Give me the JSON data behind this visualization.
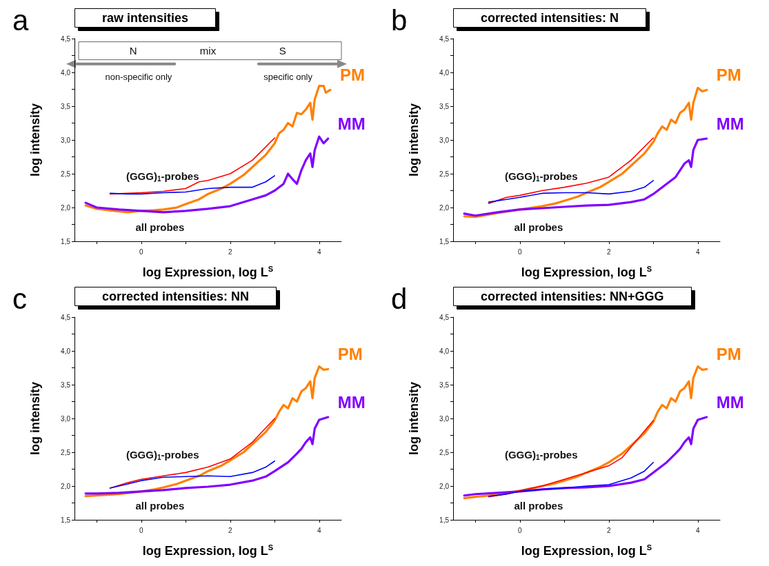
{
  "chart_data": [
    {
      "type": "line",
      "title": "raw intensities",
      "xlabel": "log Expression, log L$^{S}$",
      "ylabel": "log intensity",
      "xlim": [
        -1.5,
        4.5
      ],
      "ylim": [
        1.5,
        4.5
      ],
      "xticks": [
        {
          "value": -1,
          "label": null
        },
        0,
        {
          "value": 1,
          "label": null
        },
        2,
        {
          "value": 3,
          "label": null
        },
        4
      ],
      "yticks": [
        {
          "value": 1.5,
          "label": "1,5"
        },
        {
          "value": 1.75,
          "label": null
        },
        {
          "value": 2,
          "label": "2,0"
        },
        {
          "value": 2.25,
          "label": null
        },
        {
          "value": 2.5,
          "label": "2,5"
        },
        {
          "value": 2.75,
          "label": null
        },
        {
          "value": 3,
          "label": "3,0"
        },
        {
          "value": 3.25,
          "label": null
        },
        {
          "value": 3.5,
          "label": "3,5"
        },
        {
          "value": 3.75,
          "label": null
        },
        {
          "value": 4,
          "label": "4,0"
        },
        {
          "value": 4.25,
          "label": null
        },
        {
          "value": 4.5,
          "label": "4,5"
        }
      ],
      "grid": false,
      "legend": false,
      "annotations": [
        "a",
        "N",
        "mix",
        "S",
        "non-specific only",
        "specific only",
        "(GGG)$_{1}$-probes",
        "all probes"
      ],
      "series": [
        {
          "name": "PM",
          "color": "#ff8000",
          "x": [
            -1.25,
            -1,
            -0.6,
            -0.3,
            0,
            0.3,
            0.5,
            0.8,
            1,
            1.3,
            1.5,
            1.8,
            2,
            2.3,
            2.5,
            2.8,
            3,
            3.1,
            3.2,
            3.3,
            3.4,
            3.5,
            3.6,
            3.7,
            3.8,
            3.85,
            3.9,
            4,
            4.1,
            4.15,
            4.25
          ],
          "values": [
            2.03,
            1.98,
            1.95,
            1.93,
            1.95,
            1.96,
            1.97,
            2.0,
            2.05,
            2.12,
            2.2,
            2.28,
            2.35,
            2.48,
            2.6,
            2.78,
            2.95,
            3.1,
            3.15,
            3.25,
            3.2,
            3.4,
            3.38,
            3.45,
            3.55,
            3.3,
            3.6,
            3.8,
            3.8,
            3.7,
            3.74
          ]
        },
        {
          "name": "MM",
          "color": "#8000ff",
          "x": [
            -1.25,
            -1,
            -0.5,
            0,
            0.5,
            1,
            1.5,
            2,
            2.5,
            2.8,
            3,
            3.2,
            3.3,
            3.4,
            3.5,
            3.6,
            3.7,
            3.8,
            3.85,
            3.9,
            4,
            4.1,
            4.2
          ],
          "values": [
            2.07,
            2.0,
            1.97,
            1.95,
            1.93,
            1.95,
            1.98,
            2.02,
            2.12,
            2.18,
            2.25,
            2.35,
            2.5,
            2.42,
            2.35,
            2.55,
            2.7,
            2.8,
            2.6,
            2.85,
            3.05,
            2.95,
            3.02
          ]
        },
        {
          "color": "#ff0000",
          "x": [
            -0.7,
            -0.3,
            0,
            0.5,
            1,
            1.3,
            1.5,
            2,
            2.5,
            3
          ],
          "values": [
            2.2,
            2.21,
            2.22,
            2.24,
            2.28,
            2.38,
            2.4,
            2.5,
            2.7,
            3.03
          ]
        },
        {
          "color": "#0000ff",
          "x": [
            -0.7,
            -0.3,
            0,
            0.5,
            1,
            1.5,
            2,
            2.5,
            2.8,
            3
          ],
          "values": [
            2.21,
            2.2,
            2.2,
            2.22,
            2.23,
            2.28,
            2.3,
            2.3,
            2.38,
            2.47
          ]
        }
      ]
    },
    {
      "type": "line",
      "title": "corrected intensities: N",
      "xlabel": "log Expression, log L$^{S}$",
      "ylabel": "log intensity",
      "xlim": [
        -1.5,
        4.5
      ],
      "ylim": [
        1.5,
        4.5
      ],
      "xticks": [
        {
          "value": -1,
          "label": null
        },
        0,
        {
          "value": 1,
          "label": null
        },
        2,
        {
          "value": 3,
          "label": null
        },
        4
      ],
      "yticks": [
        {
          "value": 1.5,
          "label": "1,5"
        },
        {
          "value": 1.75,
          "label": null
        },
        {
          "value": 2,
          "label": "2,0"
        },
        {
          "value": 2.25,
          "label": null
        },
        {
          "value": 2.5,
          "label": "2,5"
        },
        {
          "value": 2.75,
          "label": null
        },
        {
          "value": 3,
          "label": "3,0"
        },
        {
          "value": 3.25,
          "label": null
        },
        {
          "value": 3.5,
          "label": "3,5"
        },
        {
          "value": 3.75,
          "label": null
        },
        {
          "value": 4,
          "label": "4,0"
        },
        {
          "value": 4.25,
          "label": null
        },
        {
          "value": 4.5,
          "label": "4,5"
        }
      ],
      "grid": false,
      "legend": false,
      "annotations": [
        "b",
        "(GGG)$_{1}$-probes",
        "all probes"
      ],
      "series": [
        {
          "name": "PM",
          "color": "#ff8000",
          "x": [
            -1.25,
            -1,
            -0.5,
            0,
            0.3,
            0.5,
            0.8,
            1,
            1.3,
            1.5,
            1.8,
            2,
            2.3,
            2.5,
            2.8,
            3,
            3.1,
            3.2,
            3.3,
            3.4,
            3.5,
            3.6,
            3.7,
            3.8,
            3.85,
            3.9,
            4,
            4.1,
            4.2
          ],
          "values": [
            1.87,
            1.86,
            1.92,
            1.97,
            2.0,
            2.02,
            2.06,
            2.1,
            2.16,
            2.22,
            2.3,
            2.38,
            2.5,
            2.62,
            2.8,
            2.97,
            3.1,
            3.2,
            3.15,
            3.3,
            3.25,
            3.4,
            3.45,
            3.55,
            3.3,
            3.55,
            3.77,
            3.72,
            3.74
          ]
        },
        {
          "name": "MM",
          "color": "#8000ff",
          "x": [
            -1.25,
            -1,
            -0.5,
            0,
            0.5,
            1,
            1.5,
            2,
            2.5,
            2.8,
            3,
            3.3,
            3.5,
            3.6,
            3.7,
            3.8,
            3.85,
            3.9,
            4,
            4.2
          ],
          "values": [
            1.91,
            1.88,
            1.93,
            1.97,
            1.99,
            2.01,
            2.03,
            2.04,
            2.08,
            2.12,
            2.2,
            2.35,
            2.45,
            2.55,
            2.65,
            2.7,
            2.6,
            2.85,
            3.0,
            3.02
          ]
        },
        {
          "color": "#ff0000",
          "x": [
            -0.7,
            -0.3,
            0,
            0.5,
            1,
            1.5,
            2,
            2.5,
            3
          ],
          "values": [
            2.06,
            2.15,
            2.18,
            2.25,
            2.3,
            2.36,
            2.45,
            2.7,
            3.03
          ]
        },
        {
          "color": "#0000ff",
          "x": [
            -0.7,
            -0.3,
            0,
            0.5,
            1,
            1.5,
            2,
            2.5,
            2.8,
            3
          ],
          "values": [
            2.08,
            2.12,
            2.15,
            2.21,
            2.22,
            2.22,
            2.2,
            2.24,
            2.3,
            2.4
          ]
        }
      ]
    },
    {
      "type": "line",
      "title": "corrected intensities: NN",
      "xlabel": "log Expression, log L$^{S}$",
      "ylabel": "log intensity",
      "xlim": [
        -1.5,
        4.5
      ],
      "ylim": [
        1.5,
        4.5
      ],
      "xticks": [
        {
          "value": -1,
          "label": null
        },
        0,
        {
          "value": 1,
          "label": null
        },
        2,
        {
          "value": 3,
          "label": null
        },
        4
      ],
      "yticks": [
        {
          "value": 1.5,
          "label": "1,5"
        },
        {
          "value": 1.75,
          "label": null
        },
        {
          "value": 2,
          "label": "2,0"
        },
        {
          "value": 2.25,
          "label": null
        },
        {
          "value": 2.5,
          "label": "2,5"
        },
        {
          "value": 2.75,
          "label": null
        },
        {
          "value": 3,
          "label": "3,0"
        },
        {
          "value": 3.25,
          "label": null
        },
        {
          "value": 3.5,
          "label": "3,5"
        },
        {
          "value": 3.75,
          "label": null
        },
        {
          "value": 4,
          "label": "4,0"
        },
        {
          "value": 4.25,
          "label": null
        },
        {
          "value": 4.5,
          "label": "4,5"
        }
      ],
      "grid": false,
      "legend": false,
      "annotations": [
        "c",
        "(GGG)$_{1}$-probes",
        "all probes"
      ],
      "series": [
        {
          "name": "PM",
          "color": "#ff8000",
          "x": [
            -1.25,
            -1,
            -0.5,
            0,
            0.3,
            0.5,
            0.8,
            1,
            1.3,
            1.5,
            1.8,
            2,
            2.3,
            2.5,
            2.8,
            3,
            3.1,
            3.2,
            3.3,
            3.4,
            3.5,
            3.6,
            3.7,
            3.8,
            3.85,
            3.9,
            4,
            4.1,
            4.2
          ],
          "values": [
            1.85,
            1.86,
            1.88,
            1.92,
            1.95,
            1.98,
            2.03,
            2.08,
            2.15,
            2.22,
            2.3,
            2.38,
            2.5,
            2.62,
            2.8,
            2.97,
            3.1,
            3.2,
            3.15,
            3.3,
            3.25,
            3.4,
            3.45,
            3.55,
            3.3,
            3.6,
            3.77,
            3.72,
            3.73
          ]
        },
        {
          "name": "MM",
          "color": "#8000ff",
          "x": [
            -1.25,
            -1,
            -0.5,
            0,
            0.5,
            1,
            1.5,
            2,
            2.5,
            2.8,
            3,
            3.3,
            3.5,
            3.6,
            3.7,
            3.8,
            3.85,
            3.9,
            4,
            4.2
          ],
          "values": [
            1.89,
            1.89,
            1.9,
            1.92,
            1.94,
            1.97,
            1.99,
            2.02,
            2.08,
            2.14,
            2.22,
            2.35,
            2.48,
            2.55,
            2.65,
            2.72,
            2.62,
            2.85,
            2.98,
            3.02
          ]
        },
        {
          "color": "#ff0000",
          "x": [
            -0.7,
            -0.3,
            0,
            0.5,
            1,
            1.5,
            2,
            2.5,
            3
          ],
          "values": [
            1.97,
            2.05,
            2.1,
            2.15,
            2.2,
            2.28,
            2.4,
            2.65,
            3.0
          ]
        },
        {
          "color": "#0000ff",
          "x": [
            -0.7,
            -0.3,
            0,
            0.5,
            1,
            1.5,
            2,
            2.5,
            2.8,
            3
          ],
          "values": [
            1.97,
            2.03,
            2.08,
            2.13,
            2.14,
            2.15,
            2.14,
            2.2,
            2.28,
            2.37
          ]
        }
      ]
    },
    {
      "type": "line",
      "title": "corrected intensities: NN+GGG",
      "xlabel": "log Expression, log L$^{S}$",
      "ylabel": "log intensity",
      "xlim": [
        -1.5,
        4.5
      ],
      "ylim": [
        1.5,
        4.5
      ],
      "xticks": [
        {
          "value": -1,
          "label": null
        },
        0,
        {
          "value": 1,
          "label": null
        },
        2,
        {
          "value": 3,
          "label": null
        },
        4
      ],
      "yticks": [
        {
          "value": 1.5,
          "label": "1,5"
        },
        {
          "value": 1.75,
          "label": null
        },
        {
          "value": 2,
          "label": "2,0"
        },
        {
          "value": 2.25,
          "label": null
        },
        {
          "value": 2.5,
          "label": "2,5"
        },
        {
          "value": 2.75,
          "label": null
        },
        {
          "value": 3,
          "label": "3,0"
        },
        {
          "value": 3.25,
          "label": null
        },
        {
          "value": 3.5,
          "label": "3,5"
        },
        {
          "value": 3.75,
          "label": null
        },
        {
          "value": 4,
          "label": "4,0"
        },
        {
          "value": 4.25,
          "label": null
        },
        {
          "value": 4.5,
          "label": "4,5"
        }
      ],
      "grid": false,
      "legend": false,
      "annotations": [
        "d",
        "(GGG)$_{1}$-probes",
        "all probes"
      ],
      "series": [
        {
          "name": "PM",
          "color": "#ff8000",
          "x": [
            -1.25,
            -1,
            -0.5,
            0,
            0.3,
            0.5,
            0.8,
            1,
            1.3,
            1.5,
            1.8,
            2,
            2.3,
            2.5,
            2.8,
            3,
            3.1,
            3.2,
            3.3,
            3.4,
            3.5,
            3.6,
            3.7,
            3.8,
            3.85,
            3.9,
            4,
            4.1,
            4.2
          ],
          "values": [
            1.82,
            1.84,
            1.87,
            1.93,
            1.97,
            2.0,
            2.04,
            2.08,
            2.14,
            2.2,
            2.28,
            2.35,
            2.48,
            2.6,
            2.78,
            2.95,
            3.1,
            3.2,
            3.15,
            3.3,
            3.25,
            3.4,
            3.45,
            3.55,
            3.3,
            3.6,
            3.77,
            3.72,
            3.73
          ]
        },
        {
          "name": "MM",
          "color": "#8000ff",
          "x": [
            -1.25,
            -1,
            -0.5,
            0,
            0.5,
            1,
            1.5,
            2,
            2.5,
            2.8,
            3,
            3.3,
            3.5,
            3.6,
            3.7,
            3.8,
            3.85,
            3.9,
            4,
            4.2
          ],
          "values": [
            1.86,
            1.88,
            1.9,
            1.92,
            1.95,
            1.97,
            1.98,
            2.0,
            2.05,
            2.1,
            2.2,
            2.35,
            2.48,
            2.55,
            2.65,
            2.72,
            2.62,
            2.85,
            2.98,
            3.02
          ]
        },
        {
          "color": "#ff0000",
          "x": [
            -0.7,
            -0.3,
            0,
            0.5,
            1,
            1.5,
            2,
            2.3,
            2.5,
            3
          ],
          "values": [
            1.84,
            1.88,
            1.93,
            2.0,
            2.1,
            2.2,
            2.3,
            2.42,
            2.58,
            2.97
          ]
        },
        {
          "color": "#0000ff",
          "x": [
            -0.7,
            -0.3,
            0,
            0.5,
            1,
            1.5,
            2,
            2.5,
            2.8,
            3
          ],
          "values": [
            1.85,
            1.88,
            1.92,
            1.95,
            1.97,
            2.0,
            2.02,
            2.12,
            2.22,
            2.35
          ]
        }
      ]
    }
  ]
}
